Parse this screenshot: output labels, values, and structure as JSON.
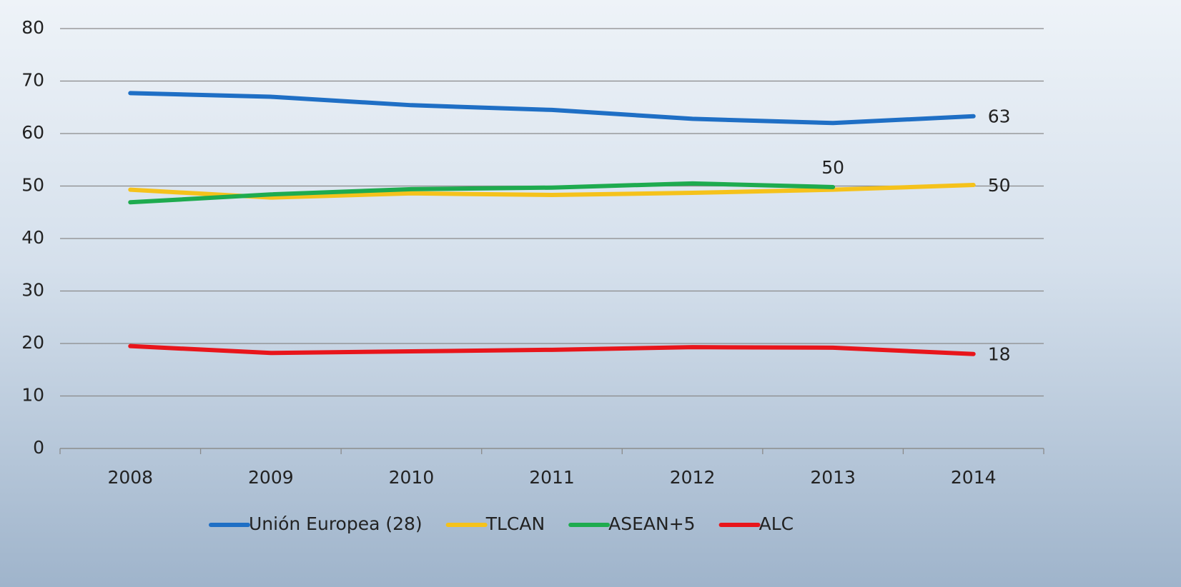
{
  "chart_data": {
    "type": "line",
    "categories": [
      "2008",
      "2009",
      "2010",
      "2011",
      "2012",
      "2013",
      "2014"
    ],
    "series": [
      {
        "name": "Unión Europea (28)",
        "color": "#1f6fc5",
        "values": [
          67.7,
          67.0,
          65.4,
          64.5,
          62.8,
          62.0,
          63.3
        ],
        "value_labels": [
          null,
          null,
          null,
          null,
          null,
          null,
          "63"
        ]
      },
      {
        "name": "TLCAN",
        "color": "#f5c21b",
        "values": [
          49.3,
          47.8,
          48.6,
          48.3,
          48.7,
          49.3,
          50.2
        ],
        "value_labels": [
          null,
          null,
          null,
          null,
          null,
          null,
          "50"
        ]
      },
      {
        "name": "ASEAN+5",
        "color": "#1eab4f",
        "values": [
          46.9,
          48.4,
          49.4,
          49.7,
          50.5,
          49.8,
          null
        ],
        "value_labels": [
          null,
          null,
          null,
          null,
          null,
          "50",
          null
        ]
      },
      {
        "name": "ALC",
        "color": "#e8151b",
        "values": [
          19.5,
          18.2,
          18.5,
          18.8,
          19.3,
          19.2,
          18.0
        ],
        "value_labels": [
          null,
          null,
          null,
          null,
          null,
          null,
          "18"
        ]
      }
    ],
    "ylim": [
      0,
      80
    ],
    "yticks": [
      0,
      10,
      20,
      30,
      40,
      50,
      60,
      70,
      80
    ],
    "grid": true,
    "legend": "bottom"
  }
}
